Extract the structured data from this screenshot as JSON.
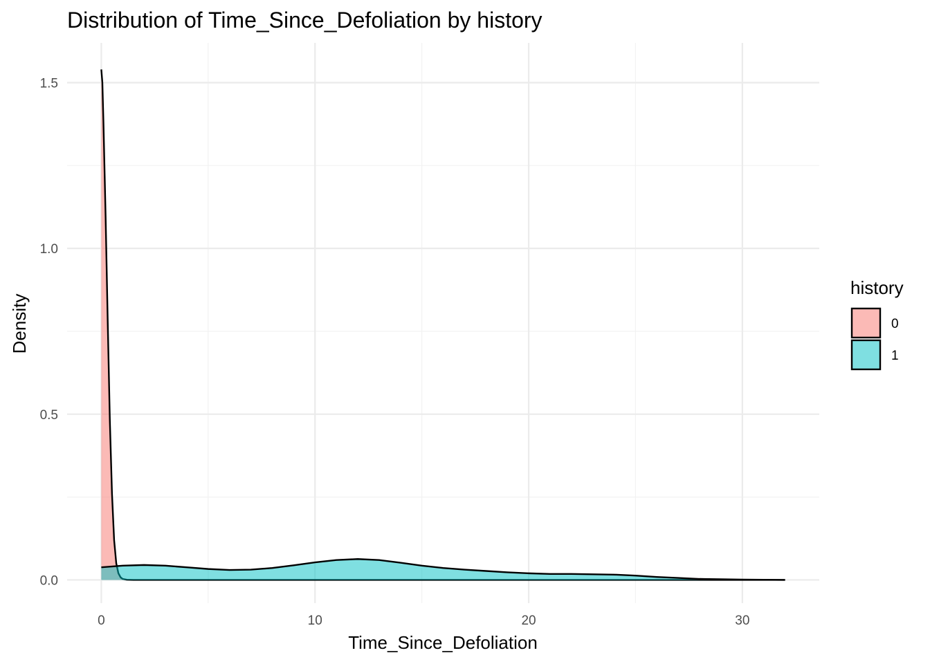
{
  "chart_data": {
    "type": "area",
    "subtype": "density",
    "title": "Distribution of Time_Since_Defoliation by history",
    "xlabel": "Time_Since_Defoliation",
    "ylabel": "Density",
    "xlim": [
      -1.6,
      33.6
    ],
    "ylim": [
      -0.07,
      1.62
    ],
    "x_ticks": [
      0,
      10,
      20,
      30
    ],
    "x_tick_labels": [
      "0",
      "10",
      "20",
      "30"
    ],
    "y_ticks": [
      0.0,
      0.5,
      1.0,
      1.5
    ],
    "y_tick_labels": [
      "0.0",
      "0.5",
      "1.0",
      "1.5"
    ],
    "grid": true,
    "legend": {
      "title": "history",
      "position": "right"
    },
    "series": [
      {
        "name": "0",
        "color": "#F8766D",
        "opacity": 0.5,
        "points": [
          [
            0.0,
            1.54
          ],
          [
            0.05,
            1.5
          ],
          [
            0.1,
            1.38
          ],
          [
            0.2,
            1.1
          ],
          [
            0.3,
            0.78
          ],
          [
            0.4,
            0.48
          ],
          [
            0.5,
            0.26
          ],
          [
            0.6,
            0.12
          ],
          [
            0.7,
            0.05
          ],
          [
            0.8,
            0.02
          ],
          [
            0.9,
            0.008
          ],
          [
            1.0,
            0.003
          ],
          [
            1.2,
            0.0005
          ],
          [
            1.5,
            0.0
          ],
          [
            5.0,
            0.0
          ],
          [
            10.0,
            0.0
          ],
          [
            15.0,
            0.0
          ],
          [
            20.0,
            0.0
          ],
          [
            25.0,
            0.0
          ],
          [
            30.0,
            0.0
          ],
          [
            32.0,
            0.0
          ]
        ]
      },
      {
        "name": "1",
        "color": "#00BFC4",
        "opacity": 0.5,
        "points": [
          [
            0.0,
            0.038
          ],
          [
            1.0,
            0.043
          ],
          [
            2.0,
            0.045
          ],
          [
            3.0,
            0.043
          ],
          [
            4.0,
            0.038
          ],
          [
            5.0,
            0.033
          ],
          [
            6.0,
            0.03
          ],
          [
            7.0,
            0.031
          ],
          [
            8.0,
            0.036
          ],
          [
            9.0,
            0.044
          ],
          [
            10.0,
            0.053
          ],
          [
            11.0,
            0.06
          ],
          [
            12.0,
            0.063
          ],
          [
            13.0,
            0.06
          ],
          [
            14.0,
            0.052
          ],
          [
            15.0,
            0.043
          ],
          [
            16.0,
            0.036
          ],
          [
            17.0,
            0.031
          ],
          [
            18.0,
            0.027
          ],
          [
            19.0,
            0.023
          ],
          [
            20.0,
            0.02
          ],
          [
            21.0,
            0.018
          ],
          [
            22.0,
            0.018
          ],
          [
            23.0,
            0.017
          ],
          [
            24.0,
            0.016
          ],
          [
            25.0,
            0.013
          ],
          [
            26.0,
            0.009
          ],
          [
            27.0,
            0.006
          ],
          [
            28.0,
            0.003
          ],
          [
            29.0,
            0.002
          ],
          [
            30.0,
            0.001
          ],
          [
            31.0,
            0.0005
          ],
          [
            32.0,
            0.0
          ]
        ]
      }
    ]
  }
}
